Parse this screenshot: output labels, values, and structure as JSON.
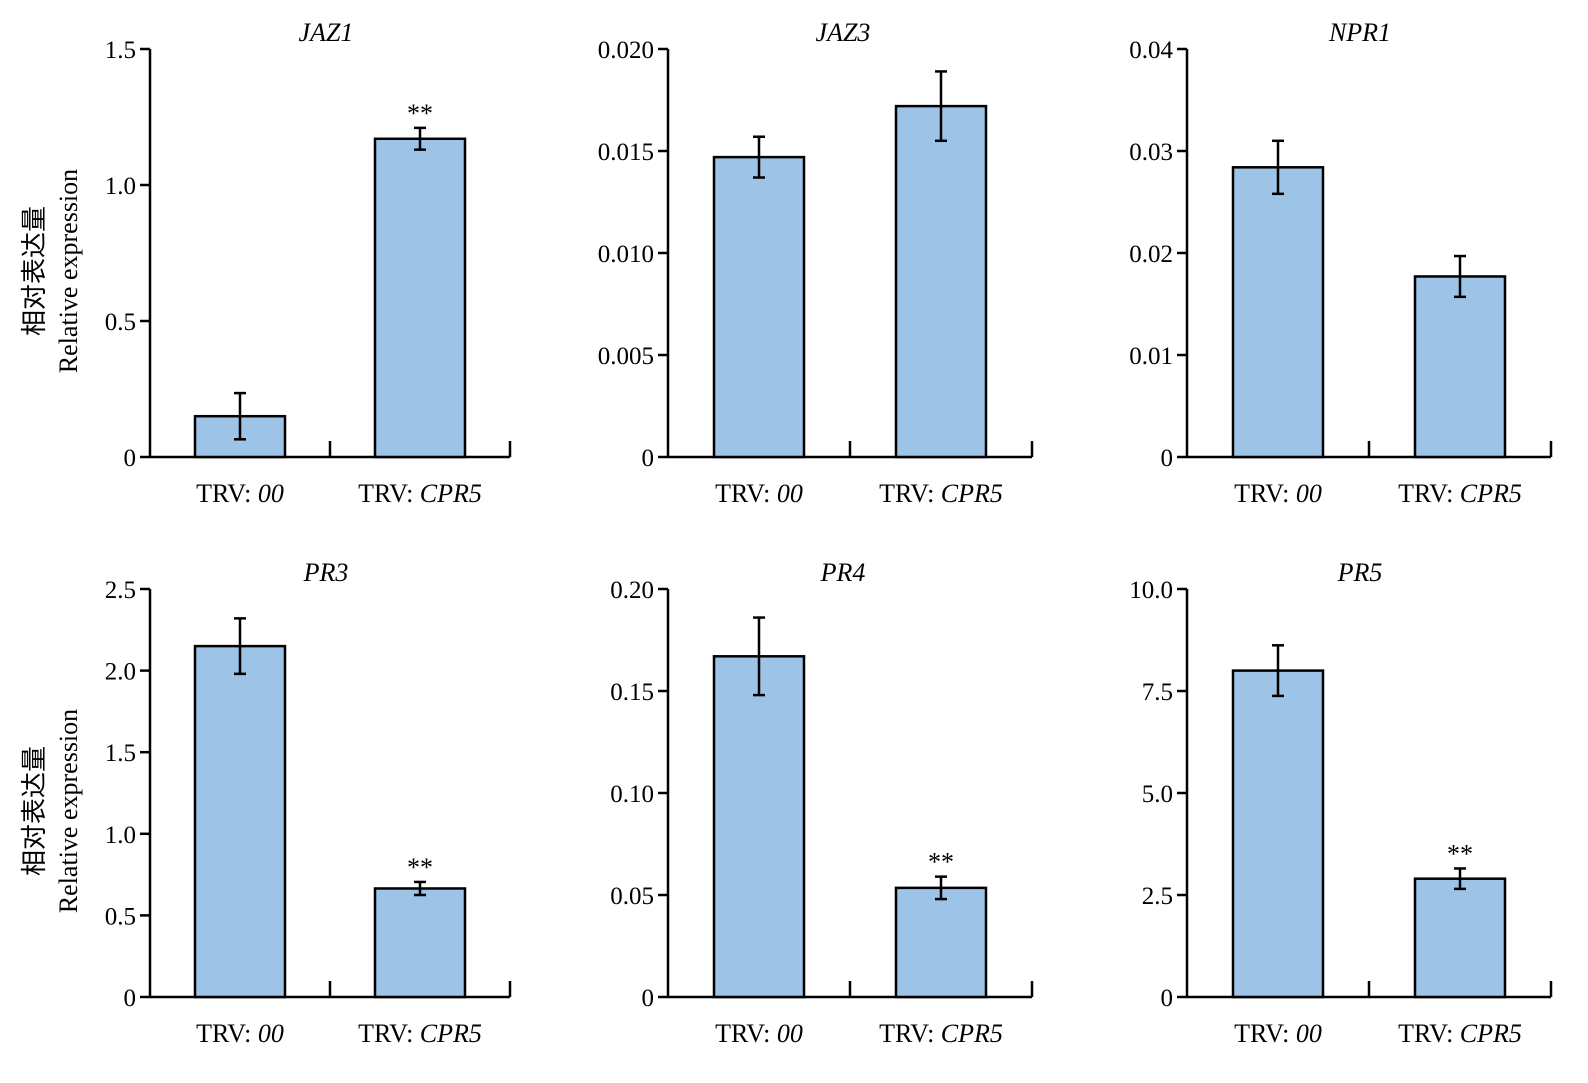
{
  "chart_data": [
    {
      "type": "bar",
      "title": "JAZ1",
      "ylabel": [
        "相对表达量",
        "Relative expression"
      ],
      "ylim": [
        0,
        1.5
      ],
      "yticks": [
        "0",
        "0.5",
        "1.0",
        "1.5"
      ],
      "categories": [
        {
          "prefix": "TRV: ",
          "name": "00"
        },
        {
          "prefix": "TRV: ",
          "name": "CPR5"
        }
      ],
      "values": [
        0.15,
        1.17
      ],
      "errors": [
        0.085,
        0.04
      ],
      "significance": [
        "",
        "**"
      ]
    },
    {
      "type": "bar",
      "title": "JAZ3",
      "ylabel": [
        "",
        ""
      ],
      "ylim": [
        0,
        0.02
      ],
      "yticks": [
        "0",
        "0.005",
        "0.010",
        "0.015",
        "0.020"
      ],
      "categories": [
        {
          "prefix": "TRV: ",
          "name": "00"
        },
        {
          "prefix": "TRV: ",
          "name": "CPR5"
        }
      ],
      "values": [
        0.0147,
        0.0172
      ],
      "errors": [
        0.001,
        0.0017
      ],
      "significance": [
        "",
        ""
      ]
    },
    {
      "type": "bar",
      "title": "NPR1",
      "ylabel": [
        "",
        ""
      ],
      "ylim": [
        0,
        0.04
      ],
      "yticks": [
        "0",
        "0.01",
        "0.02",
        "0.03",
        "0.04"
      ],
      "categories": [
        {
          "prefix": "TRV: ",
          "name": "00"
        },
        {
          "prefix": "TRV: ",
          "name": "CPR5"
        }
      ],
      "values": [
        0.0284,
        0.0177
      ],
      "errors": [
        0.0026,
        0.002
      ],
      "significance": [
        "",
        ""
      ]
    },
    {
      "type": "bar",
      "title": "PR3",
      "ylabel": [
        "相对表达量",
        "Relative expression"
      ],
      "ylim": [
        0,
        2.5
      ],
      "yticks": [
        "0",
        "0.5",
        "1.0",
        "1.5",
        "2.0",
        "2.5"
      ],
      "categories": [
        {
          "prefix": "TRV: ",
          "name": "00"
        },
        {
          "prefix": "TRV: ",
          "name": "CPR5"
        }
      ],
      "values": [
        2.15,
        0.665
      ],
      "errors": [
        0.17,
        0.04
      ],
      "significance": [
        "",
        "**"
      ]
    },
    {
      "type": "bar",
      "title": "PR4",
      "ylabel": [
        "",
        ""
      ],
      "ylim": [
        0,
        0.2
      ],
      "yticks": [
        "0",
        "0.05",
        "0.10",
        "0.15",
        "0.20"
      ],
      "categories": [
        {
          "prefix": "TRV: ",
          "name": "00"
        },
        {
          "prefix": "TRV: ",
          "name": "CPR5"
        }
      ],
      "values": [
        0.167,
        0.0535
      ],
      "errors": [
        0.019,
        0.0055
      ],
      "significance": [
        "",
        "**"
      ]
    },
    {
      "type": "bar",
      "title": "PR5",
      "ylabel": [
        "",
        ""
      ],
      "ylim": [
        0,
        10
      ],
      "yticks": [
        "0",
        "2.5",
        "5.0",
        "7.5",
        "10.0"
      ],
      "categories": [
        {
          "prefix": "TRV: ",
          "name": "00"
        },
        {
          "prefix": "TRV: ",
          "name": "CPR5"
        }
      ],
      "values": [
        8.0,
        2.9
      ],
      "errors": [
        0.62,
        0.25
      ],
      "significance": [
        "",
        "**"
      ]
    }
  ]
}
